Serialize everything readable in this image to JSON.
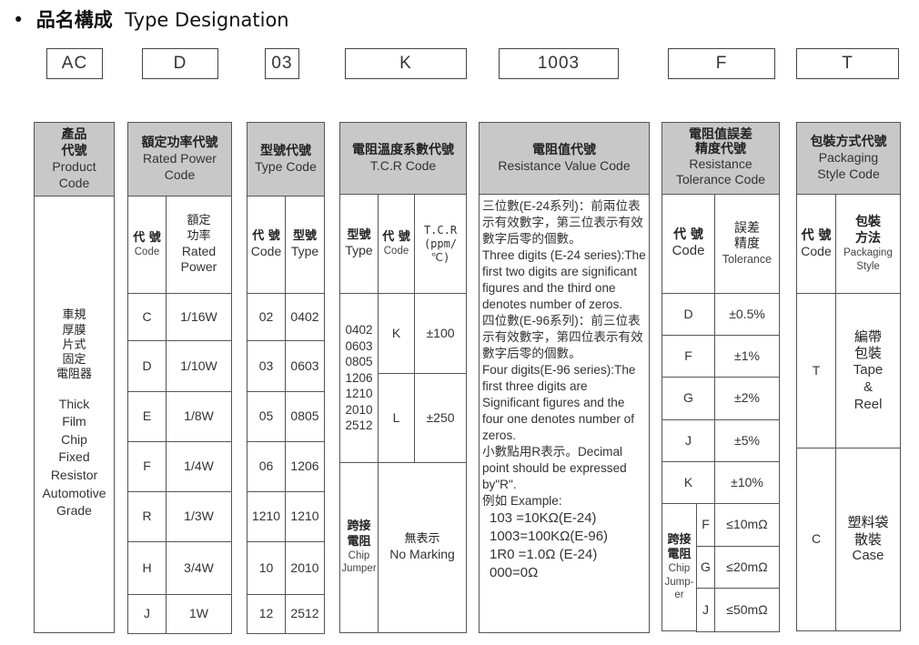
{
  "title": {
    "bullet": "•",
    "zh": "品名構成",
    "en": "Type Designation"
  },
  "codes": [
    "AC",
    "D",
    "03",
    "K",
    "1003",
    "F",
    "T"
  ],
  "col1": {
    "h_zh": "產品\n代號",
    "h_en": "Product\nCode",
    "body_zh": "車規\n厚膜\n片式\n固定\n電阻器",
    "body_en": "Thick\nFilm\nChip\nFixed\nResistor\nAutomotive\nGrade"
  },
  "col2": {
    "h_zh": "額定功率代號",
    "h_en": "Rated Power\nCode",
    "sub_code_zh": "代 號",
    "sub_code_en": "Code",
    "sub_val_zh": "額定\n功率",
    "sub_val_en": "Rated\nPower",
    "rows": [
      [
        "C",
        "1/16W"
      ],
      [
        "D",
        "1/10W"
      ],
      [
        "E",
        "1/8W"
      ],
      [
        "F",
        "1/4W"
      ],
      [
        "R",
        "1/3W"
      ],
      [
        "H",
        "3/4W"
      ],
      [
        "J",
        "1W"
      ]
    ]
  },
  "col3": {
    "h_zh": "型號代號",
    "h_en": "Type Code",
    "sub_code_zh": "代 號",
    "sub_code_en": "Code",
    "sub_type_zh": "型號",
    "sub_type_en": "Type",
    "rows": [
      [
        "02",
        "0402"
      ],
      [
        "03",
        "0603"
      ],
      [
        "05",
        "0805"
      ],
      [
        "06",
        "1206"
      ],
      [
        "1210",
        "1210"
      ],
      [
        "10",
        "2010"
      ],
      [
        "12",
        "2512"
      ]
    ]
  },
  "col4": {
    "h_zh": "電阻溫度系數代號",
    "h_en": "T.C.R Code",
    "sub_type_zh": "型號",
    "sub_type_en": "Type",
    "sub_code_zh": "代 號",
    "sub_code_en": "Code",
    "sub_tcr": "T.C.R\n(ppm/℃)",
    "rows": [
      {
        "types": "0402\n0603\n0805\n1206",
        "code": "K",
        "tcr": "±100"
      },
      {
        "types": "1210\n2010\n2512",
        "code": "L",
        "tcr": "±250"
      }
    ],
    "jumper_zh": "跨接\n電阻",
    "jumper_en": "Chip\nJumper",
    "jumper_val_zh": "無表示",
    "jumper_val_en": "No Marking"
  },
  "col5": {
    "h_zh": "電阻值代號",
    "h_en": "Resistance Value Code",
    "body": "三位數(E-24系列)：前兩位表示有效數字，第三位表示有效數字后零的個數。\nThree digits (E-24 series):The first two digits are significant figures and the third one denotes number of zeros.\n四位數(E-96系列)：前三位表示有效數字，第四位表示有效數字后零的個數。\nFour digits(E-96 series):The first three digits are Significant figures and the four one denotes number of zeros.\n小數點用R表示。Decimal point should be expressed by\"R\".\n例如 Example:",
    "examples": [
      "103 =10KΩ(E-24)",
      "1003=100KΩ(E-96)",
      "1R0 =1.0Ω (E-24)",
      "000=0Ω"
    ]
  },
  "col6": {
    "h_zh": "電阻值誤差\n精度代號",
    "h_en": "Resistance\nTolerance Code",
    "sub_code_zh": "代 號",
    "sub_code_en": "Code",
    "sub_val_zh": "誤差\n精度",
    "sub_val_en": "Tolerance",
    "rows": [
      [
        "D",
        "±0.5%"
      ],
      [
        "F",
        "±1%"
      ],
      [
        "G",
        "±2%"
      ],
      [
        "J",
        "±5%"
      ],
      [
        "K",
        "±10%"
      ]
    ],
    "jumper_zh": "跨接\n電阻",
    "jumper_en": "Chip\nJump-\ner",
    "jumper_rows": [
      [
        "F",
        "≤10mΩ"
      ],
      [
        "G",
        "≤20mΩ"
      ],
      [
        "J",
        "≤50mΩ"
      ]
    ]
  },
  "col7": {
    "h_zh": "包裝方式代號",
    "h_en": "Packaging\nStyle Code",
    "sub_code_zh": "代 號",
    "sub_code_en": "Code",
    "sub_val_zh": "包裝\n方法",
    "sub_val_en": "Packaging\nStyle",
    "rows": [
      {
        "code": "T",
        "zh": "編帶\n包裝",
        "en": "Tape\n&\nReel"
      },
      {
        "code": "C",
        "zh": "塑料袋\n散裝",
        "en": "Case"
      }
    ]
  }
}
